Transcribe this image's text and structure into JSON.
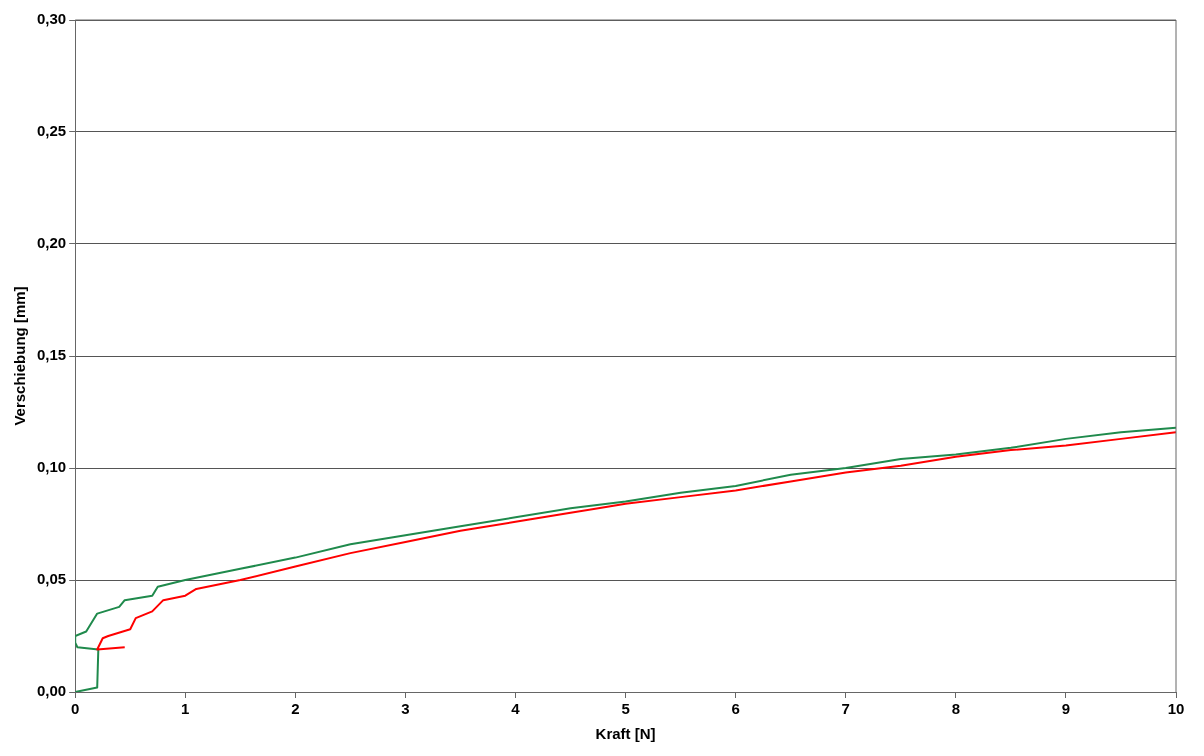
{
  "chart_data": {
    "type": "line",
    "xlabel": "Kraft [N]",
    "ylabel": "Verschiebung [mm]",
    "xlim": [
      0,
      10
    ],
    "xticks": [
      0,
      1,
      2,
      3,
      4,
      5,
      6,
      7,
      8,
      9,
      10
    ],
    "ylim": [
      0,
      0.3
    ],
    "yticks": [
      {
        "value": 0,
        "label": "0,00"
      },
      {
        "value": 0.05,
        "label": "0,05"
      },
      {
        "value": 0.1,
        "label": "0,10"
      },
      {
        "value": 0.15,
        "label": "0,15"
      },
      {
        "value": 0.2,
        "label": "0,20"
      },
      {
        "value": 0.25,
        "label": "0,25"
      },
      {
        "value": 0.3,
        "label": "0,30"
      }
    ],
    "grid": "y",
    "legend": false,
    "marker": "none",
    "line_style": "solid",
    "series": [
      {
        "color": "#ff0000",
        "x": [
          0.45,
          0.2,
          0.25,
          0.3,
          0.5,
          0.55,
          0.7,
          0.8,
          1,
          1.1,
          1.5,
          2,
          2.5,
          3,
          3.5,
          4,
          4.5,
          5,
          5.5,
          6,
          6.5,
          7,
          7.5,
          8,
          8.5,
          9,
          9.5,
          10
        ],
        "values": [
          0.02,
          0.019,
          0.024,
          0.025,
          0.028,
          0.033,
          0.036,
          0.041,
          0.043,
          0.046,
          0.05,
          0.056,
          0.062,
          0.067,
          0.072,
          0.076,
          0.08,
          0.084,
          0.087,
          0.09,
          0.094,
          0.098,
          0.101,
          0.105,
          0.108,
          0.11,
          0.113,
          0.116
        ]
      },
      {
        "color": "#1f8a4c",
        "x": [
          0,
          0.2,
          0.21,
          0.02,
          0,
          0,
          0.1,
          0.2,
          0.4,
          0.45,
          0.7,
          0.75,
          1,
          1.3,
          1.5,
          2,
          2.5,
          3,
          3.5,
          4,
          4.5,
          5,
          5.5,
          6,
          6.5,
          7,
          7.5,
          8,
          8.5,
          9,
          9.5,
          10
        ],
        "values": [
          0,
          0.002,
          0.019,
          0.02,
          0.022,
          0.025,
          0.027,
          0.035,
          0.038,
          0.041,
          0.043,
          0.047,
          0.05,
          0.053,
          0.055,
          0.06,
          0.066,
          0.07,
          0.074,
          0.078,
          0.082,
          0.085,
          0.089,
          0.092,
          0.097,
          0.1,
          0.104,
          0.106,
          0.109,
          0.113,
          0.116,
          0.118
        ]
      }
    ]
  }
}
